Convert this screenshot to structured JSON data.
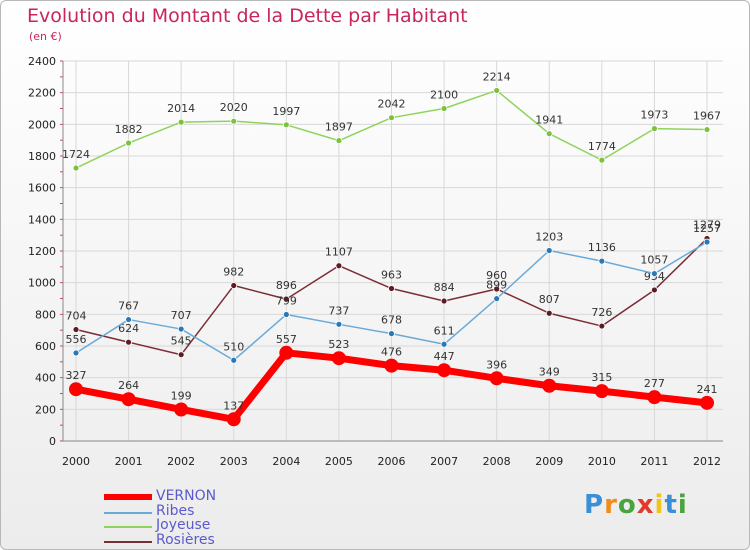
{
  "title": "Evolution du Montant de la Dette par Habitant",
  "subtitle": "(en €)",
  "logo": {
    "text": "Proxiti",
    "letter_colors": [
      "#3a8fd6",
      "#f08c1a",
      "#49a53b",
      "#e03a2c",
      "#f0c419",
      "#3a8fd6",
      "#49a53b"
    ]
  },
  "chart_data": {
    "type": "line",
    "x": [
      "2000",
      "2001",
      "2002",
      "2003",
      "2004",
      "2005",
      "2006",
      "2007",
      "2008",
      "2009",
      "2010",
      "2011",
      "2012"
    ],
    "ylim": [
      0,
      2400
    ],
    "yticks": [
      "0",
      "200",
      "400",
      "600",
      "800",
      "1000",
      "1200",
      "1400",
      "1600",
      "1800",
      "2000",
      "2200",
      "2400"
    ],
    "grid": true,
    "legend_position": "bottom-left",
    "series": [
      {
        "name": "Joyeuse",
        "color": "#8fd45a",
        "marker_color": "#7cc23e",
        "values": [
          1724,
          1882,
          2014,
          2020,
          1997,
          1897,
          2042,
          2100,
          2214,
          1941,
          1774,
          1973,
          1967
        ],
        "labels": [
          "1724",
          "1882",
          "2014",
          "2020",
          "1997",
          "1897",
          "2042",
          "2100",
          "2214",
          "1941",
          "1774",
          "1973",
          "1967"
        ]
      },
      {
        "name": "Rosières",
        "color": "#7a2e35",
        "marker_color": "#5e1c22",
        "values": [
          704,
          624,
          545,
          982,
          896,
          1107,
          963,
          884,
          960,
          807,
          726,
          954,
          1279
        ],
        "labels": [
          "704",
          "624",
          "545",
          "982",
          "896",
          "1107",
          "963",
          "884",
          "960",
          "807",
          "726",
          "954",
          "1279"
        ]
      },
      {
        "name": "Ribes",
        "color": "#6aaad8",
        "marker_color": "#2b78b8",
        "values": [
          556,
          767,
          707,
          510,
          799,
          737,
          678,
          611,
          899,
          1203,
          1136,
          1057,
          1257
        ],
        "labels": [
          "556",
          "767",
          "707",
          "510",
          "799",
          "737",
          "678",
          "611",
          "899",
          "1203",
          "1136",
          "1057",
          "1257"
        ]
      },
      {
        "name": "VERNON",
        "color": "#ff0000",
        "marker_color": "#ff0000",
        "values": [
          327,
          264,
          199,
          137,
          557,
          523,
          476,
          447,
          396,
          349,
          315,
          277,
          241
        ],
        "labels": [
          "327",
          "264",
          "199",
          "137",
          "557",
          "523",
          "476",
          "447",
          "396",
          "349",
          "315",
          "277",
          "241"
        ]
      }
    ],
    "legend": [
      "VERNON",
      "Ribes",
      "Joyeuse",
      "Rosières"
    ]
  }
}
